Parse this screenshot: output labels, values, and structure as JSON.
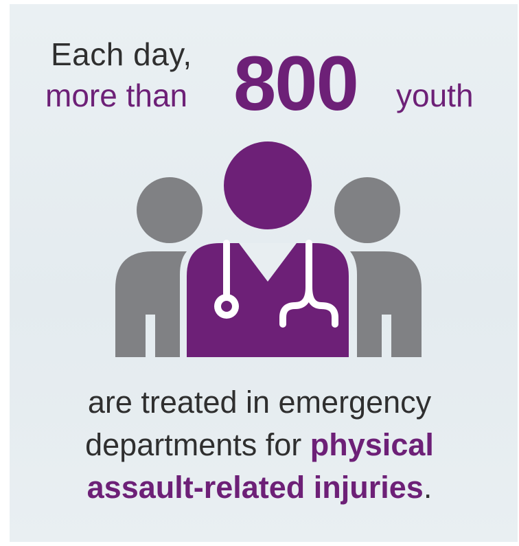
{
  "headline": {
    "line1": "Each day,",
    "line2_prefix": "more than",
    "number": "800",
    "line2_suffix": "youth"
  },
  "body": {
    "line1": "are treated in emergency",
    "line2_plain": "departments for ",
    "line2_emphasis": "physical",
    "line3_emphasis": "assault-related injuries",
    "line3_end": "."
  },
  "illustration": {
    "icon": "doctor-with-two-people-icon",
    "colors": {
      "doctor": "#6d2077",
      "people": "#808184",
      "stethoscope": "#ffffff",
      "background": "#e8eef1"
    }
  }
}
